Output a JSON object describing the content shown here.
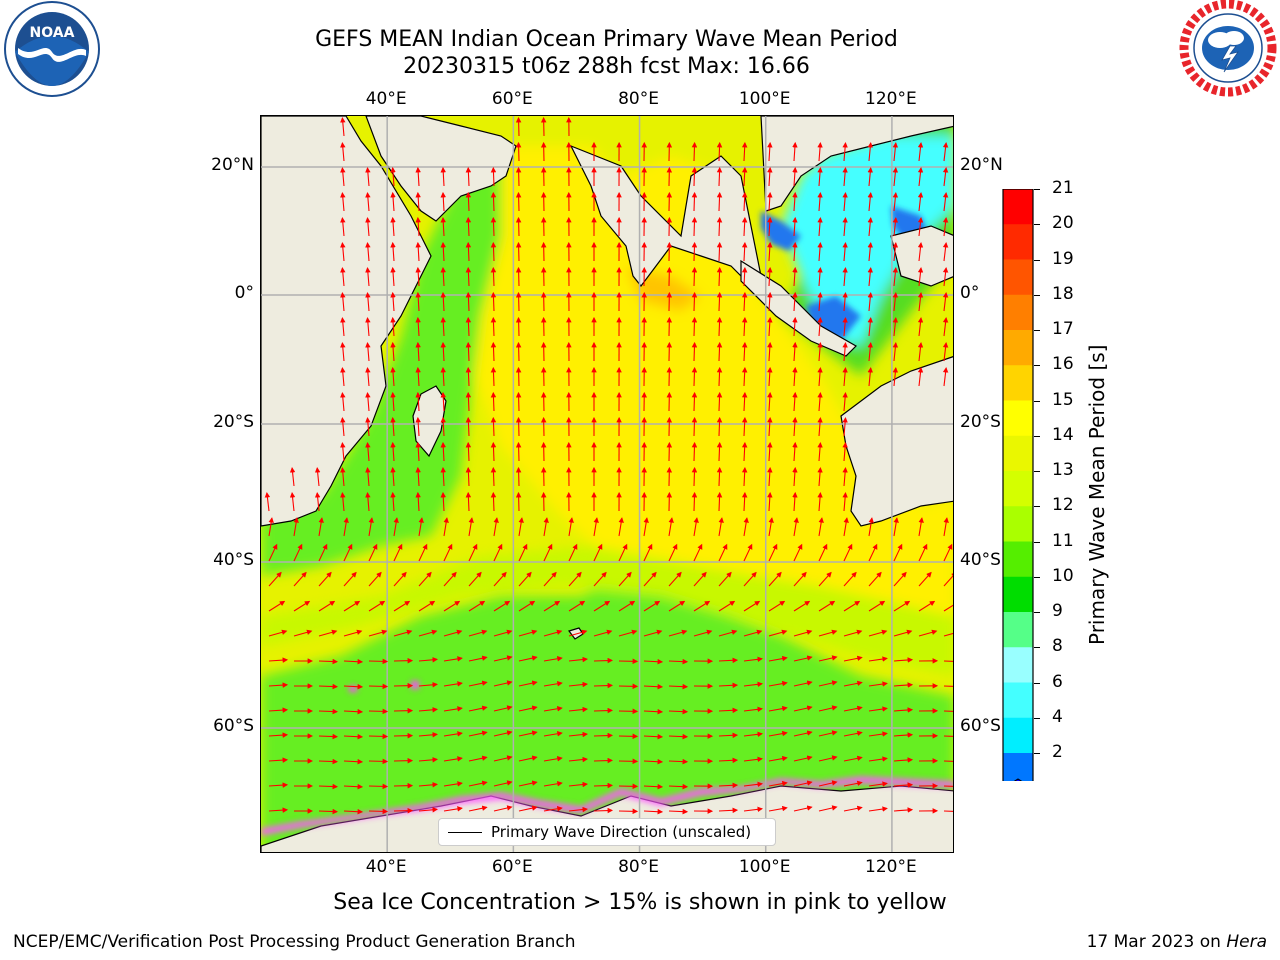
{
  "title": {
    "line1": "GEFS MEAN Indian Ocean Primary Wave Mean Period",
    "line2": "20230315 t06z 288h fcst   Max: 16.66"
  },
  "logos": {
    "left": {
      "name": "noaa-logo",
      "text": "NOAA",
      "ring_text": "NATIONAL OCEANIC AND ATMOSPHERIC ADMINISTRATION · U.S. DEPARTMENT OF COMMERCE"
    },
    "right": {
      "name": "nws-logo",
      "ring_text": "NATIONAL WEATHER SERVICE"
    }
  },
  "map": {
    "lon_ticks": [
      "40°E",
      "60°E",
      "80°E",
      "100°E",
      "120°E"
    ],
    "lon_values": [
      40,
      60,
      80,
      100,
      120
    ],
    "lat_ticks": [
      "20°N",
      "0°",
      "20°S",
      "40°S",
      "60°S"
    ],
    "lat_values": [
      20,
      0,
      -20,
      -40,
      -60
    ],
    "lon_range": [
      20,
      130
    ],
    "grid": true,
    "colors": {
      "land": "#eeecdf",
      "arrows": "#ff0000",
      "sea_ice": "#ff55ff"
    },
    "legend": {
      "label": "Primary Wave Direction (unscaled)"
    }
  },
  "colorbar": {
    "title": "Primary Wave Mean Period [s]",
    "labels": [
      "21",
      "20",
      "19",
      "18",
      "17",
      "16",
      "15",
      "14",
      "13",
      "12",
      "11",
      "10",
      "9",
      "8",
      "6",
      "4",
      "2"
    ],
    "colors": [
      "#ff0000",
      "#ff2a00",
      "#ff5500",
      "#ff7f00",
      "#ffaa00",
      "#ffd400",
      "#ffff00",
      "#eaf700",
      "#d4ff00",
      "#aaff00",
      "#55ee00",
      "#00dd00",
      "#55ff88",
      "#99ffff",
      "#44ffff",
      "#00eeff",
      "#0077ff"
    ],
    "extend_color": "#0000ff"
  },
  "footer": {
    "subtitle": "Sea Ice Concentration > 15% is shown in pink to yellow",
    "left": "NCEP/EMC/Verification Post Processing Product Generation Branch",
    "right_prefix": "17 Mar 2023 on ",
    "right_host": "Hera"
  }
}
